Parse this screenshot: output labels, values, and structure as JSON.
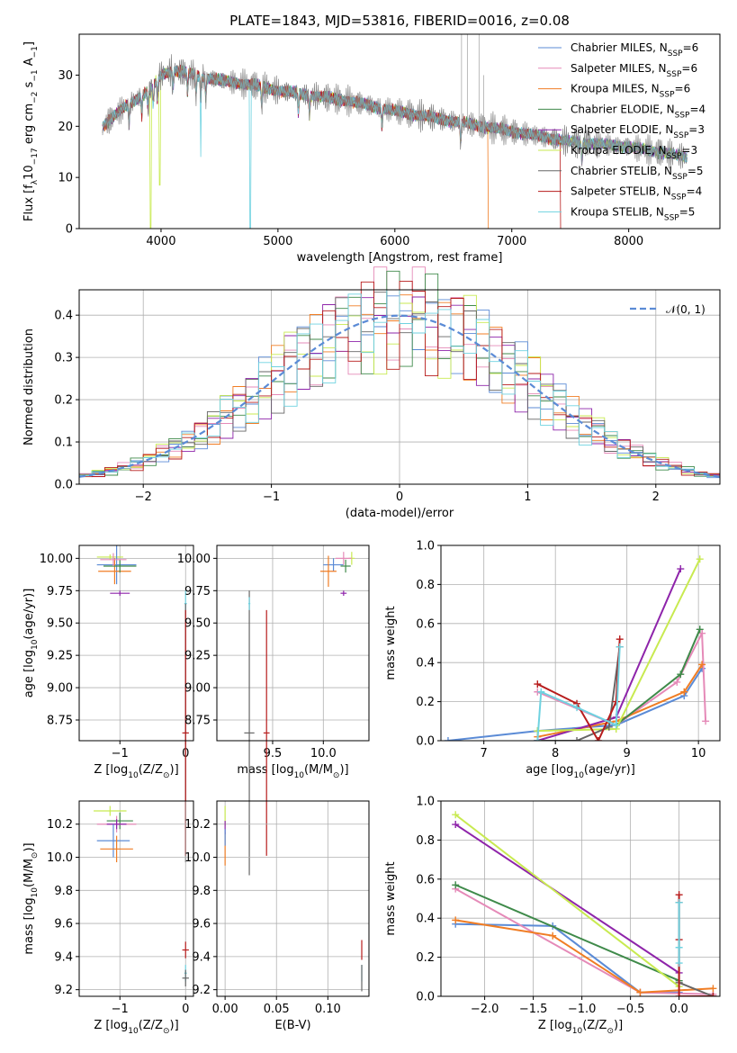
{
  "figure_title": "PLATE=1843, MJD=53816, FIBERID=0016, z=0.08",
  "colors": {
    "Chabrier MILES": "#5b8bd6",
    "Salpeter MILES": "#e58ab8",
    "Kroupa MILES": "#f07d24",
    "Chabrier ELODIE": "#3f8a4a",
    "Salpeter ELODIE": "#8e24aa",
    "Kroupa ELODIE": "#c8ea50",
    "Chabrier STELIB": "#666666",
    "Salpeter STELIB": "#b71c1c",
    "Kroupa STELIB": "#6fd2e0",
    "gauss": "#5b8bd6"
  },
  "chart_data": [
    {
      "id": "spectrum",
      "type": "line",
      "title": "PLATE=1843, MJD=53816, FIBERID=0016, z=0.08",
      "xlabel": "wavelength [Angstrom, rest frame]",
      "ylabel_parts": [
        "Flux [f",
        "λ",
        "10",
        "−17",
        " erg cm",
        "−2",
        " s",
        "−1",
        " A",
        "−1",
        "]"
      ],
      "xlim": [
        3300,
        8780
      ],
      "ylim": [
        0,
        38
      ],
      "xticks": [
        4000,
        5000,
        6000,
        7000,
        8000
      ],
      "yticks": [
        0,
        10,
        20,
        30
      ],
      "grid": false,
      "legend": "top-right",
      "legend_entries": [
        {
          "label": "Chabrier MILES, N",
          "sub": "SSP",
          "val": "=6"
        },
        {
          "label": "Salpeter MILES, N",
          "sub": "SSP",
          "val": "=6"
        },
        {
          "label": "Kroupa MILES, N",
          "sub": "SSP",
          "val": "=6"
        },
        {
          "label": "Chabrier ELODIE, N",
          "sub": "SSP",
          "val": "=4"
        },
        {
          "label": "Salpeter ELODIE, N",
          "sub": "SSP",
          "val": "=3"
        },
        {
          "label": "Kroupa ELODIE, N",
          "sub": "SSP",
          "val": "=3"
        },
        {
          "label": "Chabrier STELIB, N",
          "sub": "SSP",
          "val": "=5"
        },
        {
          "label": "Salpeter STELIB, N",
          "sub": "SSP",
          "val": "=4"
        },
        {
          "label": "Kroupa STELIB, N",
          "sub": "SSP",
          "val": "=5"
        }
      ],
      "data_continuum": {
        "x": [
          3500,
          3700,
          3900,
          4000,
          4100,
          4300,
          4500,
          4800,
          5000,
          5300,
          5600,
          6000,
          6500,
          7000,
          7500,
          8000,
          8500
        ],
        "y": [
          20,
          24,
          27,
          30,
          31,
          30,
          29,
          28,
          27,
          26,
          25,
          23,
          21,
          19,
          17,
          16,
          14
        ]
      },
      "data_spikes": [
        {
          "x": 6570,
          "y": 38
        },
        {
          "x": 6620,
          "y": 38
        },
        {
          "x": 6720,
          "y": 38
        },
        {
          "x": 6760,
          "y": 30
        }
      ],
      "model_dips": [
        {
          "model": "Kroupa ELODIE",
          "x": 3910,
          "y": 0
        },
        {
          "model": "Kroupa ELODIE",
          "x": 3990,
          "y": 8.5
        },
        {
          "model": "Kroupa STELIB",
          "x": 4765,
          "y": 0
        },
        {
          "model": "Kroupa STELIB",
          "x": 4340,
          "y": 14
        },
        {
          "model": "Kroupa MILES",
          "x": 6800,
          "y": 0
        },
        {
          "model": "Salpeter STELIB",
          "x": 7420,
          "y": 0
        }
      ]
    },
    {
      "id": "residuals",
      "type": "line",
      "xlabel": "(data-model)/error",
      "ylabel": "Normed distribution",
      "xlim": [
        -2.5,
        2.5
      ],
      "ylim": [
        0,
        0.46
      ],
      "xticks": [
        -2,
        -1,
        0,
        1,
        2
      ],
      "yticks": [
        0.0,
        0.1,
        0.2,
        0.3,
        0.4
      ],
      "grid": true,
      "legend": "top-right",
      "legend_entries": [
        {
          "label": "𝒩(0, 1)"
        }
      ],
      "gauss": {
        "mu": 0,
        "sigma": 1
      }
    },
    {
      "id": "age_vs_Z",
      "type": "scatter",
      "xlabel_parts": [
        "Z [log",
        "10",
        "(Z/Z",
        "⊙",
        ")]"
      ],
      "ylabel_parts": [
        "age  [log",
        "10",
        "(age/yr)]"
      ],
      "xlim": [
        -1.62,
        0.12
      ],
      "ylim": [
        8.59,
        10.1
      ],
      "xticks": [
        -1,
        0
      ],
      "yticks": [
        8.75,
        9.0,
        9.25,
        9.5,
        9.75,
        10.0
      ],
      "grid": true,
      "points": [
        {
          "model": "Kroupa ELODIE",
          "x": -1.15,
          "y": 10.01,
          "xerr": 0.2,
          "yerr": 0.02
        },
        {
          "model": "Chabrier MILES",
          "x": -1.05,
          "y": 9.95,
          "xerr": 0.3,
          "yerr": 0.15
        },
        {
          "model": "Kroupa MILES",
          "x": -1.08,
          "y": 9.9,
          "xerr": 0.25,
          "yerr": 0.1
        },
        {
          "model": "Chabrier ELODIE",
          "x": -1.0,
          "y": 9.94,
          "xerr": 0.25,
          "yerr": 0.05
        },
        {
          "model": "Salpeter MILES",
          "x": -1.1,
          "y": 9.99,
          "xerr": 0.2,
          "yerr": 0.05
        },
        {
          "model": "Salpeter ELODIE",
          "x": -1.0,
          "y": 9.73,
          "xerr": 0.15,
          "yerr": 0.02
        },
        {
          "model": "Kroupa STELIB",
          "x": 0.0,
          "y": 9.65,
          "xerr": 0.02,
          "yerr": 0.1
        },
        {
          "model": "Chabrier STELIB",
          "x": 0.0,
          "y": 8.65,
          "xerr": 0.02,
          "yerr": 1.0
        },
        {
          "model": "Salpeter STELIB",
          "x": 0.0,
          "y": 8.65,
          "xerr": 0.05,
          "yerr": 0.95
        }
      ]
    },
    {
      "id": "age_vs_mass",
      "type": "scatter",
      "xlabel_parts": [
        "mass [log",
        "10",
        "(M/M",
        "⊙",
        ")]"
      ],
      "xlim": [
        8.95,
        10.45
      ],
      "ylim": [
        8.59,
        10.1
      ],
      "xticks": [
        9.5,
        10.0
      ],
      "xticklabels": [
        "9.5",
        "10.0"
      ],
      "yticks": [
        8.75,
        9.0,
        9.25,
        9.5,
        9.75,
        10.0
      ],
      "grid": true,
      "points": [
        {
          "model": "Kroupa ELODIE",
          "x": 10.28,
          "y": 10.0,
          "xerr": 0.03,
          "yerr": 0.05
        },
        {
          "model": "Chabrier MILES",
          "x": 10.1,
          "y": 9.95,
          "xerr": 0.1,
          "yerr": 0.05
        },
        {
          "model": "Kroupa MILES",
          "x": 10.05,
          "y": 9.9,
          "xerr": 0.08,
          "yerr": 0.12
        },
        {
          "model": "Chabrier ELODIE",
          "x": 10.22,
          "y": 9.94,
          "xerr": 0.05,
          "yerr": 0.05
        },
        {
          "model": "Salpeter MILES",
          "x": 10.2,
          "y": 10.0,
          "xerr": 0.08,
          "yerr": 0.05
        },
        {
          "model": "Salpeter ELODIE",
          "x": 10.2,
          "y": 9.73,
          "xerr": 0.03,
          "yerr": 0.02
        },
        {
          "model": "Chabrier STELIB",
          "x": 9.27,
          "y": 8.65,
          "xerr": 0.05,
          "yerr": 1.1
        },
        {
          "model": "Kroupa STELIB",
          "x": 9.27,
          "y": 9.65,
          "xerr": 0.01,
          "yerr": 0.05
        },
        {
          "model": "Salpeter STELIB",
          "x": 9.44,
          "y": 8.65,
          "xerr": 0.03,
          "yerr": 0.95
        }
      ]
    },
    {
      "id": "weight_vs_age",
      "type": "line",
      "xlabel_parts": [
        "age  [log",
        "10",
        "(age/yr)]"
      ],
      "ylabel": "mass weight",
      "xlim": [
        6.4,
        10.3
      ],
      "ylim": [
        0,
        1.0
      ],
      "xticks": [
        7,
        8,
        9,
        10
      ],
      "yticks": [
        0.0,
        0.2,
        0.4,
        0.6,
        0.8,
        1.0
      ],
      "grid": true,
      "series": [
        {
          "model": "Chabrier MILES",
          "x": [
            6.5,
            7.75,
            8.85,
            9.8,
            10.05
          ],
          "y": [
            0.0,
            0.05,
            0.08,
            0.23,
            0.37
          ]
        },
        {
          "model": "Salpeter MILES",
          "x": [
            7.75,
            8.85,
            9.7,
            10.05,
            10.1
          ],
          "y": [
            0.25,
            0.08,
            0.3,
            0.55,
            0.1
          ]
        },
        {
          "model": "Kroupa MILES",
          "x": [
            7.75,
            8.85,
            9.8,
            10.05
          ],
          "y": [
            0.02,
            0.1,
            0.25,
            0.39
          ]
        },
        {
          "model": "Chabrier ELODIE",
          "x": [
            8.85,
            9.75,
            10.02
          ],
          "y": [
            0.08,
            0.34,
            0.57
          ]
        },
        {
          "model": "Salpeter ELODIE",
          "x": [
            7.75,
            8.85,
            9.75
          ],
          "y": [
            0.0,
            0.12,
            0.88
          ]
        },
        {
          "model": "Kroupa ELODIE",
          "x": [
            7.75,
            8.85,
            10.02
          ],
          "y": [
            0.05,
            0.06,
            0.93
          ]
        },
        {
          "model": "Chabrier STELIB",
          "x": [
            7.75,
            8.3,
            8.75,
            8.9
          ],
          "y": [
            0.0,
            0.0,
            0.07,
            0.48
          ]
        },
        {
          "model": "Salpeter STELIB",
          "x": [
            7.75,
            8.3,
            8.6,
            8.85,
            8.9
          ],
          "y": [
            0.29,
            0.19,
            0.0,
            0.2,
            0.52
          ]
        },
        {
          "model": "Kroupa STELIB",
          "x": [
            7.75,
            7.8,
            8.3,
            8.85,
            8.9
          ],
          "y": [
            0.0,
            0.25,
            0.17,
            0.08,
            0.48
          ]
        }
      ]
    },
    {
      "id": "mass_vs_Z",
      "type": "scatter",
      "xlabel_parts": [
        "Z [log",
        "10",
        "(Z/Z",
        "⊙",
        ")]"
      ],
      "ylabel_parts": [
        "mass [log",
        "10",
        "(M/M",
        "⊙",
        ")]"
      ],
      "xlim": [
        -1.62,
        0.12
      ],
      "ylim": [
        9.16,
        10.34
      ],
      "xticks": [
        -1,
        0
      ],
      "yticks": [
        9.2,
        9.4,
        9.6,
        9.8,
        10.0,
        10.2
      ],
      "grid": true,
      "points": [
        {
          "model": "Kroupa ELODIE",
          "x": -1.15,
          "y": 10.28,
          "xerr": 0.25,
          "yerr": 0.03
        },
        {
          "model": "Chabrier ELODIE",
          "x": -1.0,
          "y": 10.22,
          "xerr": 0.2,
          "yerr": 0.05
        },
        {
          "model": "Salpeter MILES",
          "x": -1.05,
          "y": 10.2,
          "xerr": 0.3,
          "yerr": 0.05
        },
        {
          "model": "Salpeter ELODIE",
          "x": -1.05,
          "y": 10.2,
          "xerr": 0.15,
          "yerr": 0.03
        },
        {
          "model": "Chabrier MILES",
          "x": -1.1,
          "y": 10.1,
          "xerr": 0.25,
          "yerr": 0.1
        },
        {
          "model": "Kroupa MILES",
          "x": -1.05,
          "y": 10.05,
          "xerr": 0.25,
          "yerr": 0.08
        },
        {
          "model": "Salpeter STELIB",
          "x": 0.0,
          "y": 9.44,
          "xerr": 0.05,
          "yerr": 0.05
        },
        {
          "model": "Kroupa STELIB",
          "x": 0.0,
          "y": 9.3,
          "xerr": 0.02,
          "yerr": 0.05
        },
        {
          "model": "Chabrier STELIB",
          "x": 0.0,
          "y": 9.27,
          "xerr": 0.05,
          "yerr": 0.05
        }
      ]
    },
    {
      "id": "mass_vs_ebv",
      "type": "scatter",
      "xlabel": "E(B-V)",
      "xlim": [
        -0.008,
        0.14
      ],
      "ylim": [
        9.16,
        10.34
      ],
      "xticks": [
        0.0,
        0.05,
        0.1
      ],
      "xticklabels": [
        "0.00",
        "0.05",
        "0.10"
      ],
      "yticks": [
        9.2,
        9.4,
        9.6,
        9.8,
        10.0,
        10.2
      ],
      "grid": true,
      "points": [
        {
          "model": "Kroupa ELODIE",
          "x": 0.0,
          "y": 10.25,
          "xerr": 0.0,
          "yerr": 0.06
        },
        {
          "model": "Kroupa MILES",
          "x": 0.0,
          "y": 10.05,
          "xerr": 0.0,
          "yerr": 0.1
        },
        {
          "model": "Salpeter ELODIE",
          "x": 0.0,
          "y": 10.18,
          "xerr": 0.0,
          "yerr": 0.04
        },
        {
          "model": "Chabrier MILES",
          "x": 0.0,
          "y": 10.12,
          "xerr": 0.0,
          "yerr": 0.05
        },
        {
          "model": "Salpeter STELIB",
          "x": 0.133,
          "y": 9.44,
          "xerr": 0.0,
          "yerr": 0.06
        },
        {
          "model": "Kroupa STELIB",
          "x": 0.133,
          "y": 9.3,
          "xerr": 0.0,
          "yerr": 0.05
        },
        {
          "model": "Chabrier STELIB",
          "x": 0.133,
          "y": 9.27,
          "xerr": 0.0,
          "yerr": 0.08
        }
      ]
    },
    {
      "id": "weight_vs_Z",
      "type": "line",
      "xlabel_parts": [
        "Z [log",
        "10",
        "(Z/Z",
        "⊙",
        ")]"
      ],
      "ylabel": "mass weight",
      "xlim": [
        -2.45,
        0.42
      ],
      "ylim": [
        0,
        1.0
      ],
      "xticks": [
        -2.0,
        -1.5,
        -1.0,
        -0.5,
        0.0
      ],
      "xticklabels": [
        "−2.0",
        "−1.5",
        "−1.0",
        "−0.5",
        "0.0"
      ],
      "yticks": [
        0.0,
        0.2,
        0.4,
        0.6,
        0.8,
        1.0
      ],
      "grid": true,
      "series": [
        {
          "model": "Chabrier MILES",
          "x": [
            -2.3,
            -1.3,
            -0.4,
            0.0
          ],
          "y": [
            0.37,
            0.36,
            0.02,
            0.02
          ]
        },
        {
          "model": "Salpeter MILES",
          "x": [
            -2.3,
            -0.4,
            0.35
          ],
          "y": [
            0.55,
            0.02,
            0.01
          ]
        },
        {
          "model": "Kroupa MILES",
          "x": [
            -2.3,
            -1.3,
            -0.4,
            0.35
          ],
          "y": [
            0.39,
            0.31,
            0.02,
            0.04
          ]
        },
        {
          "model": "Chabrier ELODIE",
          "x": [
            -2.3,
            0.0
          ],
          "y": [
            0.57,
            0.08
          ]
        },
        {
          "model": "Salpeter ELODIE",
          "x": [
            -2.3,
            0.0
          ],
          "y": [
            0.88,
            0.12
          ]
        },
        {
          "model": "Kroupa ELODIE",
          "x": [
            -2.3,
            0.0
          ],
          "y": [
            0.93,
            0.05
          ]
        },
        {
          "model": "Chabrier STELIB",
          "x": [
            0.0,
            0.0,
            0.35
          ],
          "y": [
            0.48,
            0.07,
            0.0
          ]
        },
        {
          "model": "Salpeter STELIB",
          "x": [
            0.0,
            0.0,
            0.0,
            0.35
          ],
          "y": [
            0.52,
            0.29,
            0.0,
            0.0
          ]
        },
        {
          "model": "Kroupa STELIB",
          "x": [
            0.0,
            0.0,
            0.0
          ],
          "y": [
            0.48,
            0.25,
            0.17
          ]
        }
      ]
    }
  ]
}
